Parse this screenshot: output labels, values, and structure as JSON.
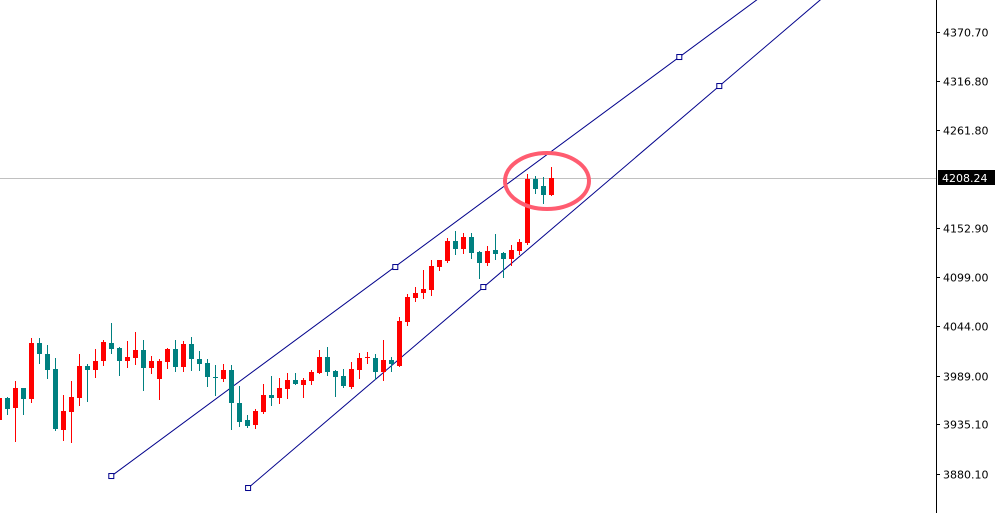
{
  "chart_data": {
    "type": "candlestick",
    "title": "",
    "xlabel": "",
    "ylabel": "",
    "ylim": [
      3856,
      4406
    ],
    "grid": false,
    "y_ticks": [
      "4370.70",
      "4316.80",
      "4261.80",
      "4152.90",
      "4099.00",
      "4044.00",
      "3989.00",
      "3935.10",
      "3880.10"
    ],
    "last_price": "4208.24",
    "colors": {
      "bull": "#ff0000",
      "bear": "#008080",
      "trendline": "#00008b",
      "price_line": "#c0c0c0",
      "annotation": "#ff5c70",
      "axis": "#000000"
    },
    "candles_ohlc": [
      [
        3940.0,
        3964.4,
        3940.0,
        3964.4
      ],
      [
        3964.4,
        3965.5,
        3946.7,
        3952.2
      ],
      [
        3953.3,
        3983.3,
        3916.7,
        3975.5
      ],
      [
        3975.5,
        3975.5,
        3946.7,
        3963.3
      ],
      [
        3963.3,
        4031.0,
        3960.0,
        4025.5
      ],
      [
        4025.5,
        4031.0,
        4003.3,
        4013.3
      ],
      [
        4013.3,
        4023.2,
        3986.6,
        3995.5
      ],
      [
        3996.6,
        4008.8,
        3928.9,
        3930.0
      ],
      [
        3928.9,
        3967.7,
        3917.8,
        3950.0
      ],
      [
        3948.9,
        3983.3,
        3915.6,
        3965.5
      ],
      [
        3964.4,
        4013.3,
        3956.6,
        3999.9
      ],
      [
        3999.9,
        4002.2,
        3961.1,
        3995.5
      ],
      [
        3995.5,
        4018.8,
        3987.7,
        4005.5
      ],
      [
        4005.5,
        4028.8,
        4001.0,
        4026.6
      ],
      [
        4025.5,
        4047.7,
        4014.4,
        4018.8
      ],
      [
        4019.9,
        4021.0,
        3989.9,
        4005.5
      ],
      [
        4005.5,
        4027.7,
        3998.8,
        4009.9
      ],
      [
        4008.8,
        4037.7,
        4002.2,
        4017.7
      ],
      [
        4017.7,
        4028.8,
        3973.3,
        3997.7
      ],
      [
        3997.7,
        4011.0,
        3992.2,
        4005.5
      ],
      [
        3985.5,
        4007.7,
        3963.3,
        4005.5
      ],
      [
        4004.4,
        4019.9,
        3997.7,
        4018.8
      ],
      [
        4018.8,
        4028.8,
        3994.4,
        3998.8
      ],
      [
        3998.8,
        4027.7,
        3994.4,
        4024.4
      ],
      [
        4024.4,
        4032.1,
        3995.5,
        4007.7
      ],
      [
        4007.7,
        4016.6,
        3995.5,
        4002.2
      ],
      [
        4003.3,
        4007.7,
        3977.7,
        3987.7
      ],
      [
        3987.7,
        4001.0,
        3967.7,
        3986.6
      ],
      [
        3985.5,
        4002.2,
        3983.3,
        3995.5
      ],
      [
        3995.5,
        4001.0,
        3930.0,
        3958.9
      ],
      [
        3958.9,
        3977.7,
        3933.3,
        3937.8
      ],
      [
        3940.0,
        3945.5,
        3932.2,
        3933.3
      ],
      [
        3934.4,
        3952.2,
        3931.1,
        3950.0
      ],
      [
        3948.9,
        3980.0,
        3947.8,
        3967.7
      ],
      [
        3967.7,
        3988.8,
        3956.6,
        3964.4
      ],
      [
        3964.4,
        3986.6,
        3958.9,
        3975.5
      ],
      [
        3974.4,
        3992.2,
        3964.4,
        3984.4
      ],
      [
        3984.4,
        3992.2,
        3980.0,
        3980.0
      ],
      [
        3978.8,
        3986.6,
        3965.5,
        3984.4
      ],
      [
        3983.3,
        3995.5,
        3980.0,
        3993.3
      ],
      [
        3992.2,
        4017.7,
        3992.2,
        4009.9
      ],
      [
        4009.9,
        4021.0,
        3989.9,
        3993.3
      ],
      [
        3994.4,
        3995.5,
        3966.6,
        3987.7
      ],
      [
        3988.8,
        3996.6,
        3976.6,
        3977.7
      ],
      [
        3976.6,
        4004.4,
        3975.5,
        3996.6
      ],
      [
        3995.5,
        4014.4,
        3986.6,
        4008.8
      ],
      [
        4008.8,
        4015.5,
        4003.3,
        4009.9
      ],
      [
        4008.8,
        4013.3,
        3985.5,
        3993.3
      ],
      [
        3993.3,
        4028.8,
        3984.4,
        4006.6
      ],
      [
        4006.6,
        4009.9,
        3994.4,
        4002.2
      ],
      [
        3999.9,
        4054.3,
        3999.9,
        4049.9
      ],
      [
        4048.8,
        4079.9,
        4045.4,
        4076.5
      ],
      [
        4075.4,
        4087.6,
        4072.1,
        4081.0
      ],
      [
        4081.0,
        4106.5,
        4075.4,
        4085.4
      ],
      [
        4084.3,
        4117.6,
        4078.7,
        4110.9
      ],
      [
        4109.8,
        4117.6,
        4106.5,
        4117.6
      ],
      [
        4116.5,
        4142.0,
        4115.4,
        4138.7
      ],
      [
        4138.7,
        4149.8,
        4124.3,
        4129.8
      ],
      [
        4129.8,
        4147.6,
        4125.4,
        4143.1
      ],
      [
        4143.1,
        4147.6,
        4119.8,
        4125.4
      ],
      [
        4126.5,
        4127.6,
        4097.6,
        4114.3
      ],
      [
        4114.3,
        4133.1,
        4112.0,
        4127.6
      ],
      [
        4128.7,
        4146.5,
        4118.7,
        4124.3
      ],
      [
        4125.4,
        4126.5,
        4098.7,
        4118.7
      ],
      [
        4118.7,
        4134.2,
        4112.0,
        4128.7
      ],
      [
        4127.6,
        4140.9,
        4124.3,
        4137.6
      ],
      [
        4136.5,
        4213.1,
        4135.4,
        4207.5
      ],
      [
        4207.5,
        4210.8,
        4192.0,
        4196.4
      ],
      [
        4199.7,
        4209.7,
        4180.9,
        4189.7
      ],
      [
        4189.7,
        4220.8,
        4189.7,
        4208.24
      ]
    ],
    "trendlines": [
      {
        "anchors": [
          [
            14.0,
            3877.8
          ],
          [
            49.5,
            4109.8
          ],
          [
            85.0,
            4342.9
          ]
        ],
        "extend": "right"
      },
      {
        "anchors": [
          [
            31.1,
            3864.5
          ],
          [
            60.5,
            4087.6
          ],
          [
            90.0,
            4310.7
          ]
        ],
        "extend": "right"
      }
    ]
  }
}
